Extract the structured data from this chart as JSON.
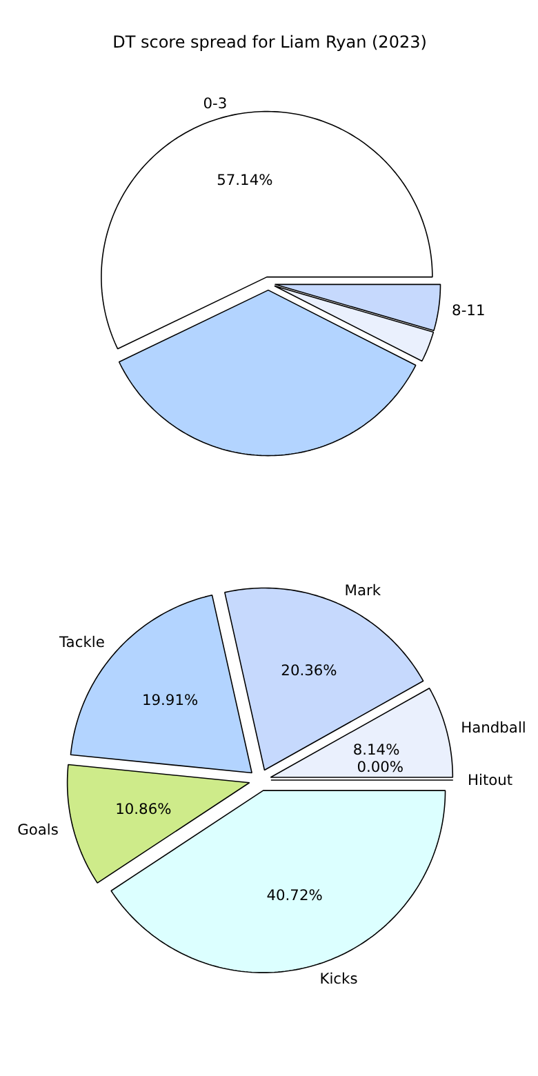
{
  "chart_data": [
    {
      "type": "pie",
      "title": "DT score spread for Liam Ryan (2023)",
      "categories": [
        "0-3",
        null,
        null,
        "8-11"
      ],
      "values": [
        57.14,
        35.36,
        3.0,
        4.5
      ],
      "colors": [
        "#ffffff",
        "#b3d4ff",
        "#eaf0fd",
        "#c6d9fd"
      ],
      "value_labels": [
        "57.14%",
        null,
        null,
        null
      ]
    },
    {
      "type": "pie",
      "categories": [
        "Hitout",
        "Handball",
        "Mark",
        "Tackle",
        "Goals",
        "Kicks"
      ],
      "values": [
        0.0,
        8.14,
        20.36,
        19.91,
        10.86,
        40.72
      ],
      "colors": [
        "#dbe5f9",
        "#eaf0fd",
        "#c6d9fd",
        "#b3d4ff",
        "#ceeb8a",
        "#dcffff"
      ],
      "value_labels": [
        "0.00%",
        "8.14%",
        "20.36%",
        "19.91%",
        "10.86%",
        "40.72%"
      ]
    }
  ]
}
